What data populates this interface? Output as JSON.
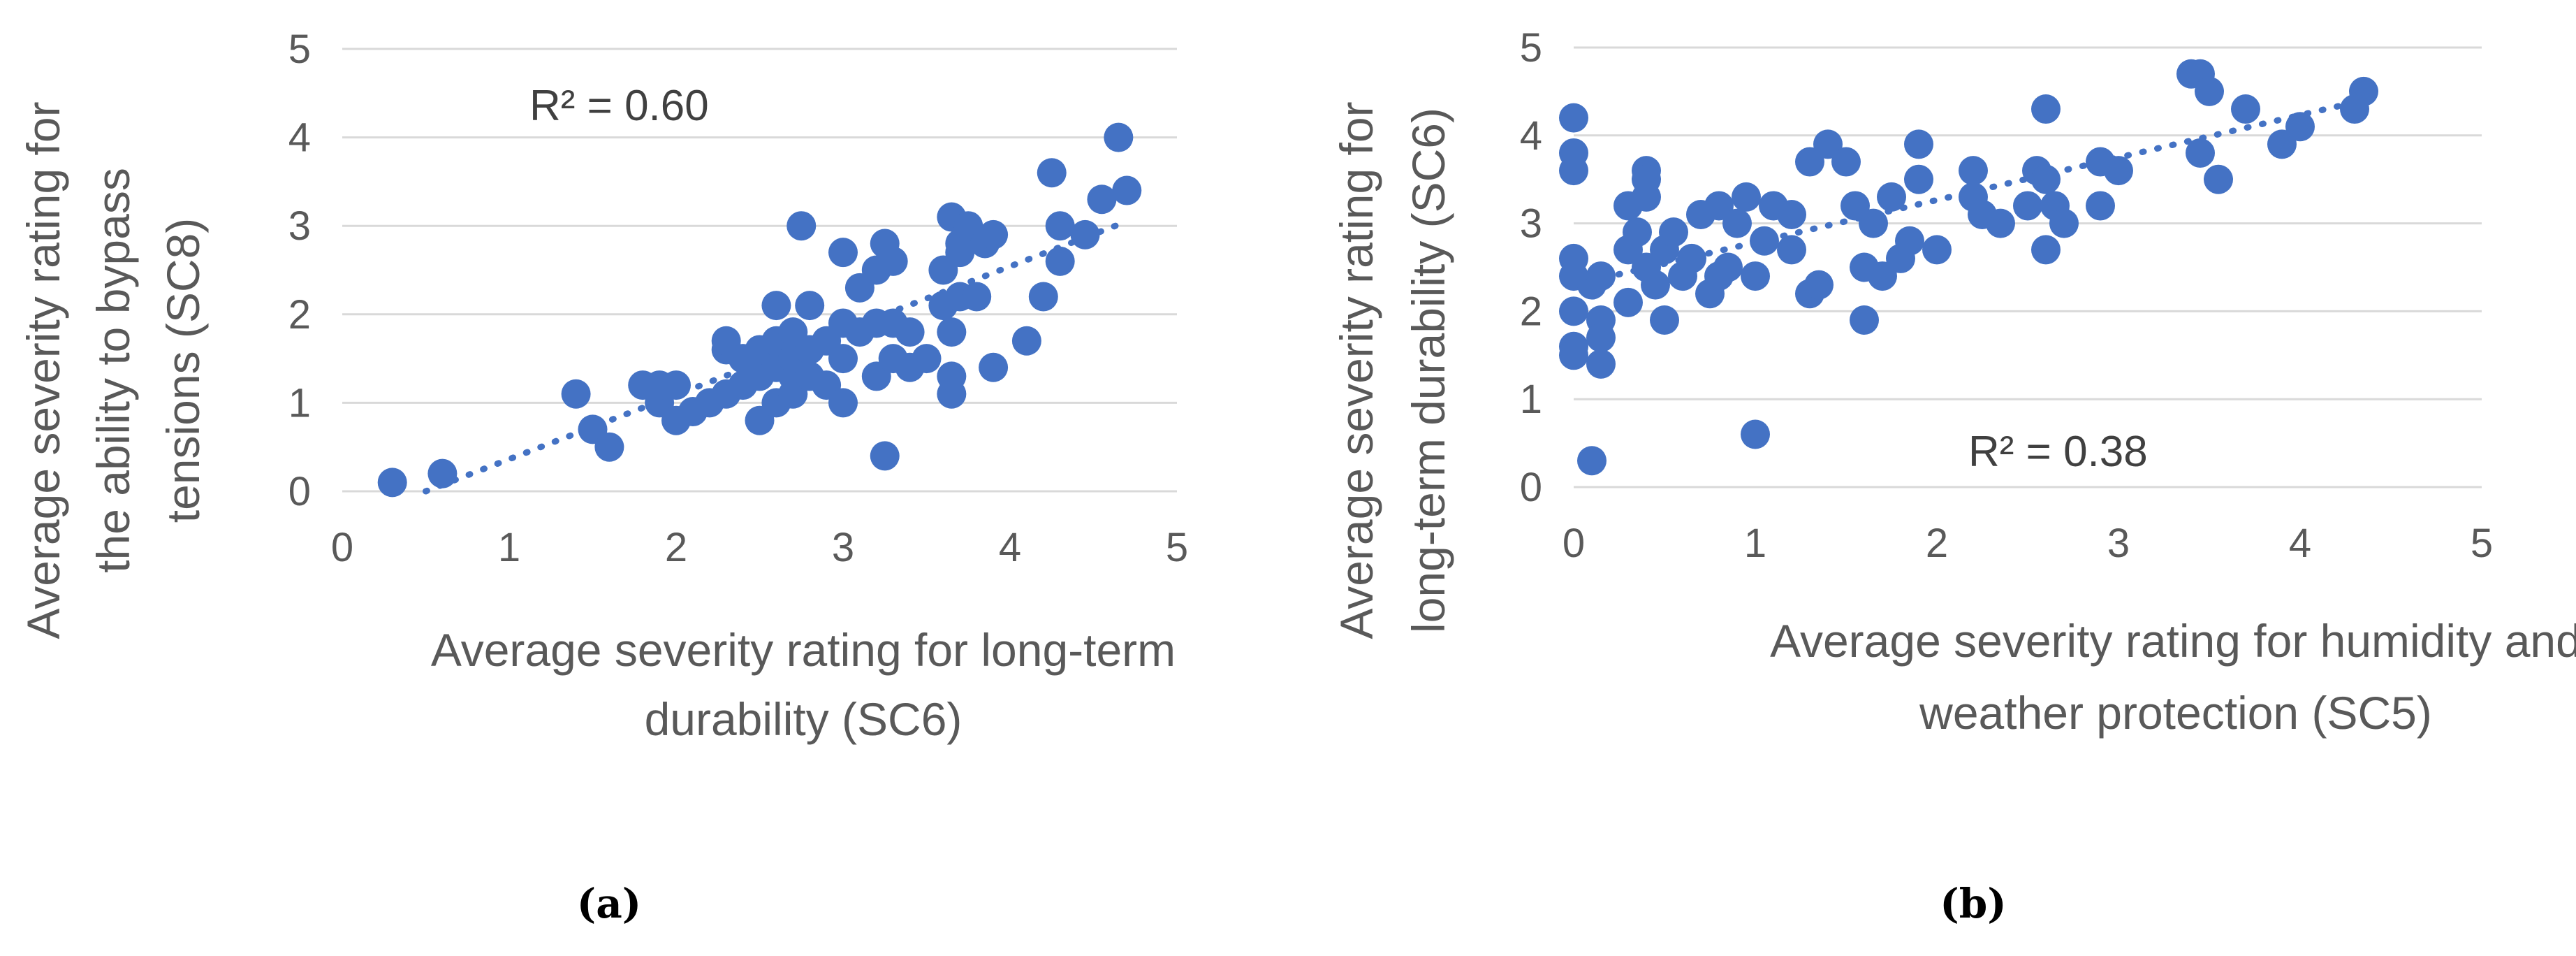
{
  "chart_data": [
    {
      "type": "scatter",
      "caption": "(a)",
      "xlabel_lines": [
        "Average severity rating for long-term",
        "durability (SC6)"
      ],
      "ylabel_lines": [
        "Average severity rating for",
        "the ability to bypass",
        "tensions (SC8)"
      ],
      "xlim": [
        0,
        5
      ],
      "ylim": [
        0,
        5
      ],
      "xticks": [
        "0",
        "1",
        "2",
        "3",
        "4",
        "5"
      ],
      "yticks": [
        "0",
        "1",
        "2",
        "3",
        "4",
        "5"
      ],
      "grid": true,
      "r2_label": "R² = 0.60",
      "trendline": {
        "style": "dotted-linear",
        "from": [
          0.5,
          0.0
        ],
        "to": [
          4.7,
          3.05
        ]
      },
      "points": [
        [
          0.3,
          0.1
        ],
        [
          0.6,
          0.2
        ],
        [
          1.4,
          1.1
        ],
        [
          1.5,
          0.7
        ],
        [
          1.6,
          0.5
        ],
        [
          1.8,
          1.2
        ],
        [
          1.9,
          1.0
        ],
        [
          1.9,
          1.2
        ],
        [
          2.0,
          0.8
        ],
        [
          2.0,
          1.2
        ],
        [
          2.1,
          0.9
        ],
        [
          2.2,
          1.0
        ],
        [
          2.3,
          1.1
        ],
        [
          2.3,
          1.6
        ],
        [
          2.3,
          1.7
        ],
        [
          2.4,
          1.2
        ],
        [
          2.4,
          1.5
        ],
        [
          2.5,
          0.8
        ],
        [
          2.5,
          1.3
        ],
        [
          2.5,
          1.6
        ],
        [
          2.6,
          1.0
        ],
        [
          2.6,
          1.4
        ],
        [
          2.6,
          1.7
        ],
        [
          2.6,
          2.1
        ],
        [
          2.7,
          1.1
        ],
        [
          2.7,
          1.3
        ],
        [
          2.7,
          1.5
        ],
        [
          2.7,
          1.8
        ],
        [
          2.8,
          1.3
        ],
        [
          2.8,
          1.6
        ],
        [
          2.8,
          2.1
        ],
        [
          2.75,
          3.0
        ],
        [
          2.9,
          1.2
        ],
        [
          2.9,
          1.7
        ],
        [
          3.0,
          1.0
        ],
        [
          3.0,
          1.5
        ],
        [
          3.0,
          1.9
        ],
        [
          3.0,
          2.7
        ],
        [
          3.1,
          1.8
        ],
        [
          3.1,
          2.3
        ],
        [
          3.2,
          1.3
        ],
        [
          3.2,
          1.9
        ],
        [
          3.2,
          2.5
        ],
        [
          3.25,
          2.8
        ],
        [
          3.25,
          0.4
        ],
        [
          3.3,
          1.5
        ],
        [
          3.3,
          2.6
        ],
        [
          3.3,
          1.9
        ],
        [
          3.4,
          1.4
        ],
        [
          3.4,
          1.8
        ],
        [
          3.5,
          1.5
        ],
        [
          3.6,
          2.1
        ],
        [
          3.6,
          2.5
        ],
        [
          3.65,
          3.1
        ],
        [
          3.65,
          1.1
        ],
        [
          3.65,
          1.3
        ],
        [
          3.65,
          1.8
        ],
        [
          3.7,
          2.7
        ],
        [
          3.7,
          2.2
        ],
        [
          3.7,
          2.8
        ],
        [
          3.75,
          3.0
        ],
        [
          3.8,
          2.2
        ],
        [
          3.85,
          2.8
        ],
        [
          3.9,
          2.9
        ],
        [
          3.9,
          1.4
        ],
        [
          4.1,
          1.7
        ],
        [
          4.2,
          2.2
        ],
        [
          4.25,
          3.6
        ],
        [
          4.3,
          2.6
        ],
        [
          4.3,
          3.0
        ],
        [
          4.45,
          2.9
        ],
        [
          4.55,
          3.3
        ],
        [
          4.65,
          4.0
        ],
        [
          4.7,
          3.4
        ]
      ]
    },
    {
      "type": "scatter",
      "caption": "(b)",
      "xlabel_lines": [
        "Average severity rating for humidity and",
        "weather protection (SC5)"
      ],
      "ylabel_lines": [
        "Average severity rating for",
        "long-term durability (SC6)"
      ],
      "xlim": [
        0,
        5
      ],
      "ylim": [
        0,
        5
      ],
      "xticks": [
        "0",
        "1",
        "2",
        "3",
        "4",
        "5"
      ],
      "yticks": [
        "0",
        "1",
        "2",
        "3",
        "4",
        "5"
      ],
      "grid": true,
      "r2_label": "R² = 0.38",
      "trendline": {
        "style": "dotted-linear",
        "from": [
          0.0,
          2.3
        ],
        "to": [
          4.35,
          4.4
        ]
      },
      "points": [
        [
          0.0,
          4.2
        ],
        [
          0.0,
          3.8
        ],
        [
          0.0,
          3.6
        ],
        [
          0.0,
          2.6
        ],
        [
          0.0,
          2.4
        ],
        [
          0.0,
          2.0
        ],
        [
          0.0,
          1.6
        ],
        [
          0.0,
          1.5
        ],
        [
          0.1,
          0.3
        ],
        [
          0.1,
          2.3
        ],
        [
          0.15,
          1.9
        ],
        [
          0.15,
          1.7
        ],
        [
          0.15,
          1.4
        ],
        [
          0.15,
          2.4
        ],
        [
          0.3,
          3.2
        ],
        [
          0.3,
          2.7
        ],
        [
          0.3,
          2.1
        ],
        [
          0.35,
          2.9
        ],
        [
          0.4,
          3.6
        ],
        [
          0.4,
          3.5
        ],
        [
          0.4,
          3.3
        ],
        [
          0.4,
          2.5
        ],
        [
          0.45,
          2.3
        ],
        [
          0.5,
          1.9
        ],
        [
          0.5,
          2.7
        ],
        [
          0.55,
          2.9
        ],
        [
          0.6,
          2.4
        ],
        [
          0.65,
          2.6
        ],
        [
          0.7,
          3.1
        ],
        [
          0.75,
          2.2
        ],
        [
          0.8,
          2.4
        ],
        [
          0.8,
          3.2
        ],
        [
          0.85,
          2.5
        ],
        [
          0.9,
          3.0
        ],
        [
          0.95,
          3.3
        ],
        [
          1.0,
          0.6
        ],
        [
          1.0,
          2.4
        ],
        [
          1.05,
          2.8
        ],
        [
          1.1,
          3.2
        ],
        [
          1.2,
          2.7
        ],
        [
          1.2,
          3.1
        ],
        [
          1.3,
          3.7
        ],
        [
          1.3,
          2.2
        ],
        [
          1.35,
          2.3
        ],
        [
          1.4,
          3.9
        ],
        [
          1.5,
          3.7
        ],
        [
          1.55,
          3.2
        ],
        [
          1.6,
          2.5
        ],
        [
          1.6,
          1.9
        ],
        [
          1.65,
          3.0
        ],
        [
          1.7,
          2.4
        ],
        [
          1.75,
          3.3
        ],
        [
          1.8,
          2.6
        ],
        [
          1.85,
          2.8
        ],
        [
          1.9,
          3.9
        ],
        [
          1.9,
          3.5
        ],
        [
          2.0,
          2.7
        ],
        [
          2.2,
          3.6
        ],
        [
          2.2,
          3.3
        ],
        [
          2.25,
          3.1
        ],
        [
          2.35,
          3.0
        ],
        [
          2.5,
          3.2
        ],
        [
          2.55,
          3.6
        ],
        [
          2.6,
          3.5
        ],
        [
          2.6,
          2.7
        ],
        [
          2.6,
          4.3
        ],
        [
          2.65,
          3.2
        ],
        [
          2.7,
          3.0
        ],
        [
          2.9,
          3.2
        ],
        [
          2.9,
          3.7
        ],
        [
          3.0,
          3.6
        ],
        [
          3.4,
          4.7
        ],
        [
          3.45,
          4.7
        ],
        [
          3.45,
          3.8
        ],
        [
          3.5,
          4.5
        ],
        [
          3.55,
          3.5
        ],
        [
          3.7,
          4.3
        ],
        [
          3.9,
          3.9
        ],
        [
          4.0,
          4.1
        ],
        [
          4.3,
          4.3
        ],
        [
          4.35,
          4.5
        ]
      ]
    }
  ]
}
